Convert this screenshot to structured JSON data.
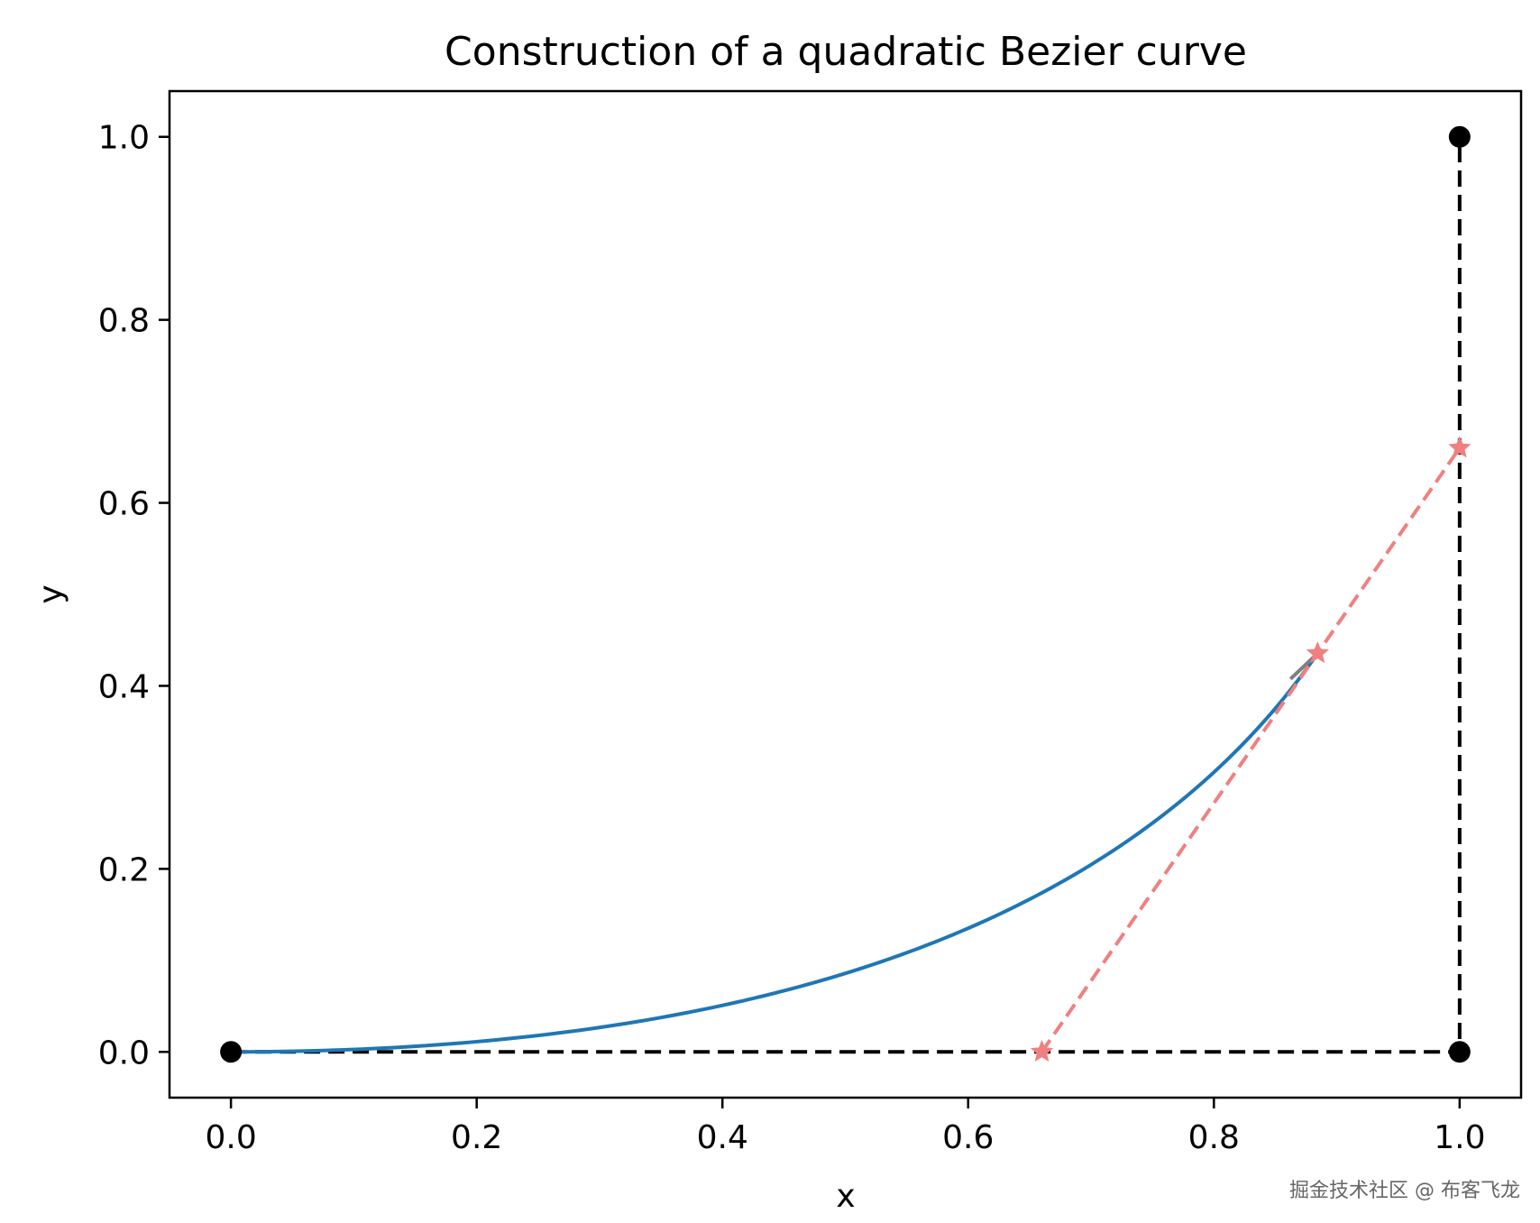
{
  "chart_data": {
    "type": "line",
    "title": "Construction of a quadratic Bezier curve",
    "xlabel": "x",
    "ylabel": "y",
    "xlim": [
      -0.05,
      1.05
    ],
    "ylim": [
      -0.05,
      1.05
    ],
    "xticks": [
      0.0,
      0.2,
      0.4,
      0.6,
      0.8,
      1.0
    ],
    "xtick_labels": [
      "0.0",
      "0.2",
      "0.4",
      "0.6",
      "0.8",
      "1.0"
    ],
    "yticks": [
      0.0,
      0.2,
      0.4,
      0.6,
      0.8,
      1.0
    ],
    "ytick_labels": [
      "0.0",
      "0.2",
      "0.4",
      "0.6",
      "0.8",
      "1.0"
    ],
    "grid": false,
    "control_points": [
      [
        0.0,
        0.0
      ],
      [
        1.0,
        0.0
      ],
      [
        1.0,
        1.0
      ]
    ],
    "control_polygon": {
      "x": [
        0.0,
        1.0,
        1.0
      ],
      "y": [
        0.0,
        0.0,
        1.0
      ],
      "style": "dashed",
      "color": "#000000"
    },
    "curve": {
      "t_max": 0.66,
      "color": "#1f77b4"
    },
    "construction_line": {
      "x": [
        0.66,
        1.0
      ],
      "y": [
        0.0,
        0.66
      ],
      "marker": "star",
      "style": "dashed",
      "color": "#f08080"
    },
    "curve_point": {
      "x": 0.8844,
      "y": 0.4356
    }
  },
  "watermark": "掘金技术社区 @ 布客飞龙"
}
